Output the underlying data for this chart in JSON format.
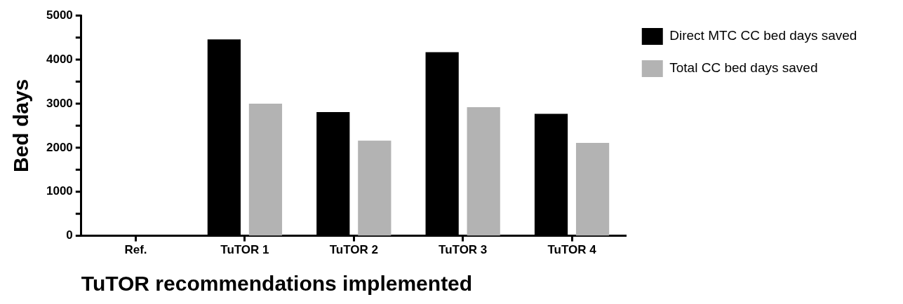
{
  "chart_data": {
    "type": "bar",
    "xlabel": "TuTOR recommendations implemented",
    "ylabel": "Bed days",
    "categories": [
      "Ref.",
      "TuTOR 1",
      "TuTOR 2",
      "TuTOR 3",
      "TuTOR 4"
    ],
    "series": [
      {
        "name": "Direct MTC CC bed days saved",
        "color": "#000000",
        "values": [
          0,
          4460,
          2810,
          4170,
          2770
        ]
      },
      {
        "name": "Total CC bed days saved",
        "color": "#b3b3b3",
        "values": [
          0,
          3000,
          2160,
          2920,
          2110
        ]
      }
    ],
    "ylim": [
      0,
      5000
    ],
    "yticks": [
      0,
      {
        "value": 500,
        "label": null
      },
      1000,
      {
        "value": 1500,
        "label": null
      },
      2000,
      {
        "value": 2500,
        "label": null
      },
      3000,
      {
        "value": 3500,
        "label": null
      },
      4000,
      {
        "value": 4500,
        "label": null
      },
      5000
    ],
    "grid": false,
    "legend": "right"
  }
}
